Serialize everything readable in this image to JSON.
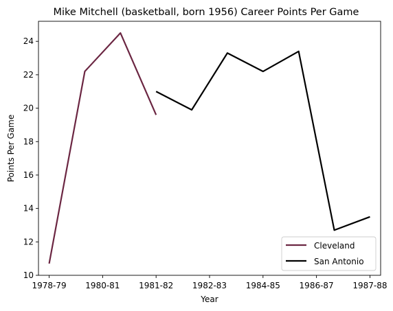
{
  "chart_data": {
    "type": "line",
    "title": "Mike Mitchell (basketball, born 1956) Career Points Per Game",
    "xlabel": "Year",
    "ylabel": "Points Per Game",
    "x_tick_labels": [
      "1978-79",
      "1980-81",
      "1981-82",
      "1982-83",
      "1984-85",
      "1986-87",
      "1987-88"
    ],
    "y_ticks": [
      10,
      12,
      14,
      16,
      18,
      20,
      22,
      24
    ],
    "ylim": [
      10,
      25.2
    ],
    "xlim": [
      -0.3,
      9.3
    ],
    "grid": false,
    "legend_position": "lower-right",
    "series": [
      {
        "name": "Cleveland",
        "color": "#6b2642",
        "x": [
          0,
          1,
          2,
          3
        ],
        "y": [
          10.7,
          22.2,
          24.5,
          19.6
        ]
      },
      {
        "name": "San Antonio",
        "color": "#000000",
        "x": [
          3,
          4,
          5,
          6,
          7,
          8,
          9
        ],
        "y": [
          21.0,
          19.9,
          23.3,
          22.2,
          23.4,
          12.7,
          13.5
        ]
      }
    ]
  }
}
